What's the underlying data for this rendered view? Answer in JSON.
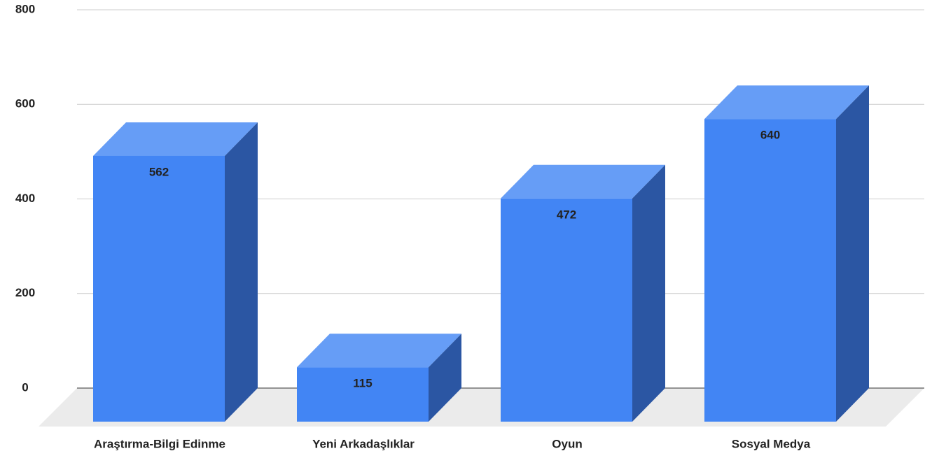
{
  "chart_data": {
    "type": "bar3d",
    "categories": [
      "Araştırma-Bilgi Edinme",
      "Yeni Arkadaşlıklar",
      "Oyun",
      "Sosyal Medya"
    ],
    "values": [
      562,
      115,
      472,
      640
    ],
    "color": "#4285f4",
    "ylim": [
      0,
      800
    ],
    "yticks": [
      0,
      200,
      400,
      600,
      800
    ],
    "grid": true
  }
}
